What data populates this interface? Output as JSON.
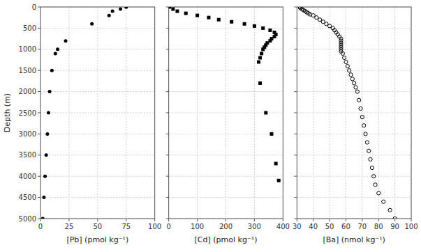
{
  "chart_data": [
    {
      "type": "scatter",
      "marker": "circle",
      "color": "black",
      "grid": true,
      "xlabel": "[Pb] (pmol kg⁻¹)",
      "ylabel": "Depth (m)",
      "x": [
        75,
        70,
        63,
        60,
        45,
        22,
        15,
        13,
        10,
        8,
        7,
        6,
        5,
        4,
        3,
        2
      ],
      "values": [
        5,
        50,
        100,
        200,
        400,
        800,
        1000,
        1100,
        1500,
        2000,
        2500,
        3000,
        3500,
        4000,
        4500,
        5000
      ],
      "xlim": [
        0,
        100
      ],
      "xticks": [
        0,
        25,
        50,
        75,
        100
      ],
      "ylim": [
        5000,
        0
      ],
      "yticks": [
        0,
        500,
        1000,
        1500,
        2000,
        2500,
        3000,
        3500,
        4000,
        4500,
        5000
      ]
    },
    {
      "type": "scatter",
      "marker": "square",
      "color": "black",
      "grid": true,
      "tick_labels": "x",
      "xlabel": "[Cd] (pmol kg⁻¹)",
      "x": [
        2,
        15,
        30,
        60,
        100,
        140,
        175,
        220,
        265,
        300,
        330,
        355,
        370,
        375,
        370,
        360,
        355,
        345,
        340,
        335,
        330,
        325,
        320,
        315,
        320,
        340,
        360,
        375,
        385
      ],
      "values": [
        0,
        50,
        100,
        150,
        200,
        250,
        300,
        350,
        400,
        450,
        500,
        550,
        600,
        650,
        700,
        750,
        800,
        850,
        900,
        950,
        1000,
        1100,
        1200,
        1300,
        1800,
        2500,
        3000,
        3700,
        4100
      ],
      "xlim": [
        0,
        400
      ],
      "xticks": [
        0,
        100,
        200,
        300,
        400
      ],
      "ylim": [
        5000,
        0
      ],
      "yticks": [
        0,
        500,
        1000,
        1500,
        2000,
        2500,
        3000,
        3500,
        4000,
        4500,
        5000
      ]
    },
    {
      "type": "scatter",
      "marker": "open-circle",
      "color": "black",
      "grid": true,
      "tick_labels": "x",
      "xlabel": "[Ba] (nmol kg⁻¹)",
      "x": [
        32,
        32,
        33,
        34,
        35,
        36,
        37,
        38,
        40,
        42,
        44,
        46,
        48,
        50,
        52,
        53,
        54,
        55,
        56,
        57,
        57,
        57,
        57,
        57,
        57,
        57,
        58,
        59,
        60,
        61,
        62,
        63,
        64,
        65,
        66,
        67,
        68,
        69,
        70,
        71,
        72,
        73,
        74,
        75,
        76,
        77,
        78,
        80,
        83,
        87,
        90
      ],
      "values": [
        0,
        25,
        50,
        75,
        100,
        125,
        150,
        175,
        200,
        250,
        300,
        350,
        400,
        450,
        500,
        550,
        600,
        650,
        700,
        750,
        800,
        850,
        900,
        950,
        1000,
        1050,
        1100,
        1200,
        1300,
        1400,
        1500,
        1600,
        1700,
        1800,
        1900,
        2000,
        2200,
        2400,
        2600,
        2800,
        3000,
        3200,
        3400,
        3600,
        3800,
        4000,
        4200,
        4400,
        4600,
        4800,
        5000
      ],
      "xlim": [
        30,
        100
      ],
      "xticks": [
        30,
        40,
        50,
        60,
        70,
        80,
        90,
        100
      ],
      "ylim": [
        5000,
        0
      ],
      "yticks": [
        0,
        500,
        1000,
        1500,
        2000,
        2500,
        3000,
        3500,
        4000,
        4500,
        5000
      ]
    }
  ]
}
